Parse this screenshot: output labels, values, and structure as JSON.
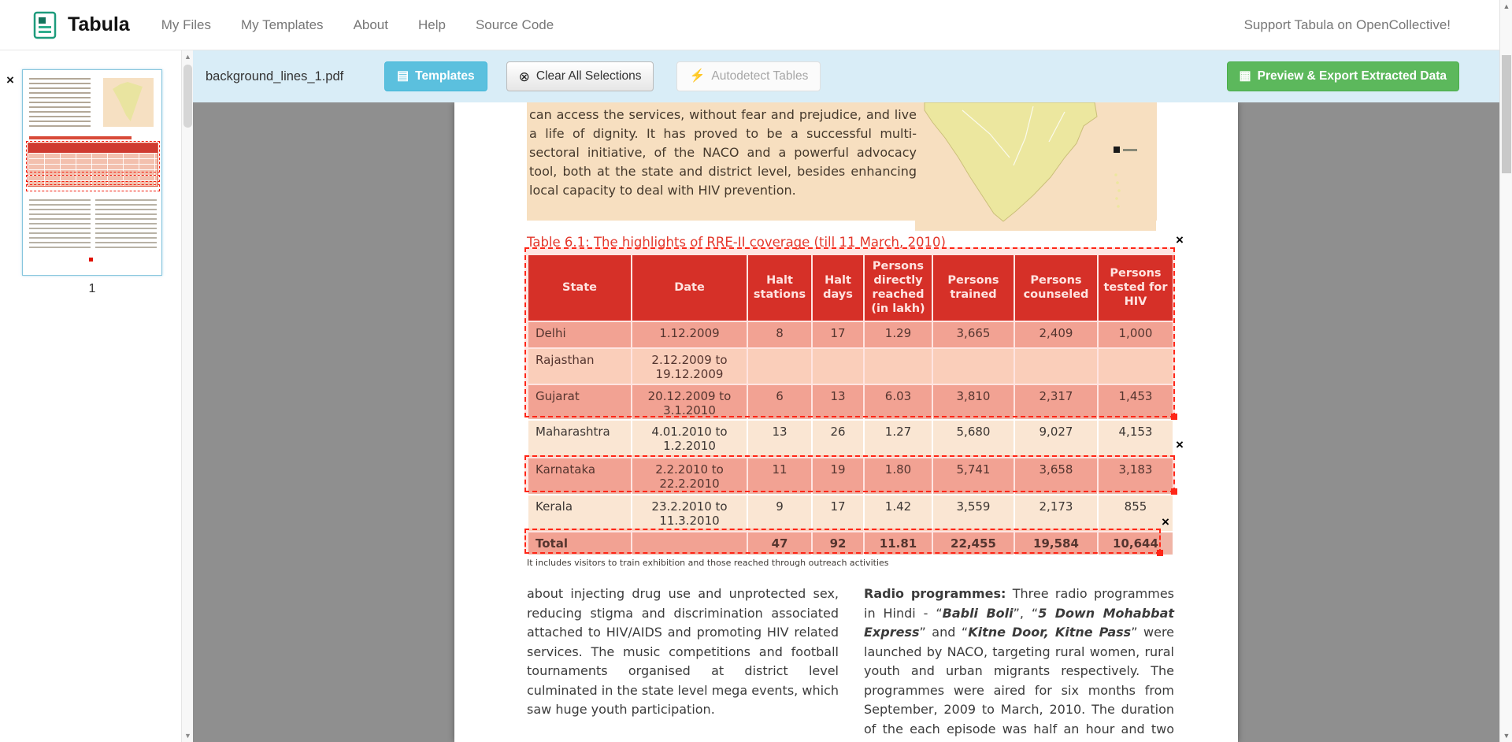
{
  "navbar": {
    "brand": "Tabula",
    "items": [
      {
        "label": "My Files"
      },
      {
        "label": "My Templates"
      },
      {
        "label": "About"
      },
      {
        "label": "Help"
      },
      {
        "label": "Source Code"
      }
    ],
    "support_link": "Support Tabula on OpenCollective!"
  },
  "toolbar": {
    "filename": "background_lines_1.pdf",
    "templates_button": "Templates",
    "clear_selections_button": "Clear All Selections",
    "autodetect_button": "Autodetect Tables",
    "export_button": "Preview & Export Extracted Data"
  },
  "sidebar": {
    "page_number": "1"
  },
  "icons": {
    "templates": "▤",
    "clear": "⊗",
    "autodetect": "⚡",
    "export": "▦",
    "close": "×",
    "scroll_up": "▲",
    "scroll_down": "▼"
  },
  "colors": {
    "toolbar_bg": "#d9edf7",
    "btn_info": "#5bc0de",
    "btn_info_border": "#46b8da",
    "btn_success": "#5cb85c",
    "btn_success_border": "#4cae4c",
    "selection_red": "#ff2617",
    "table_header_red": "#d0312b",
    "row_pink": "#f0b4a6",
    "row_cream": "#fae6d3",
    "page_peach": "#f7dfc0",
    "title_red": "#e2372b",
    "doc_gray": "#8f8f8f",
    "map_khaki": "#ece79f"
  },
  "pdf": {
    "intro_text": "can access the services, without fear and prejudice, and live a life of dignity. It has proved to be a successful multi-sectoral initiative, of the NACO and a powerful advocacy tool, both at the state and district level, besides enhancing local capacity to deal with HIV prevention.",
    "table_title": "Table 6.1: The highlights of RRE-II coverage (till 11 March, 2010)",
    "footnote": "It includes visitors to train exhibition and those reached through outreach activities",
    "left_column_text": "about injecting drug use and unprotected sex, reducing stigma and discrimination associated attached to HIV/AIDS and promoting HIV related services. The music competitions and football tournaments organised at district level culminated in the state level mega events, which saw huge youth participation.",
    "right_column": {
      "segments": [
        {
          "text": "Radio programmes:",
          "bold": true
        },
        {
          "text": " Three radio programmes in Hindi - “"
        },
        {
          "text": "Babli Boli",
          "italic": true
        },
        {
          "text": "”, “"
        },
        {
          "text": "5 Down Mohabbat Express",
          "italic": true
        },
        {
          "text": "” and “"
        },
        {
          "text": "Kitne Door, Kitne Pass",
          "italic": true
        },
        {
          "text": "” were launched by NACO, targeting rural women, rural youth and urban migrants respectively. The programmes were aired for six months from September, 2009 to March, 2010. The duration of the each episode was half an hour and two episodes"
        }
      ]
    }
  },
  "chart_data": {
    "type": "table",
    "title": "Table 6.1: The highlights of RRE-II coverage (till 11 March, 2010)",
    "columns": [
      "State",
      "Date",
      "Halt stations",
      "Halt days",
      "Persons directly reached (in lakh)",
      "Persons trained",
      "Persons counseled",
      "Persons tested for HIV"
    ],
    "rows": [
      [
        "Delhi",
        "1.12.2009",
        "8",
        "17",
        "1.29",
        "3,665",
        "2,409",
        "1,000"
      ],
      [
        "Rajasthan",
        "2.12.2009 to 19.12.2009",
        "",
        "",
        "",
        "",
        "",
        ""
      ],
      [
        "Gujarat",
        "20.12.2009 to 3.1.2010",
        "6",
        "13",
        "6.03",
        "3,810",
        "2,317",
        "1,453"
      ],
      [
        "Maharashtra",
        "4.01.2010 to 1.2.2010",
        "13",
        "26",
        "1.27",
        "5,680",
        "9,027",
        "4,153"
      ],
      [
        "Karnataka",
        "2.2.2010 to 22.2.2010",
        "11",
        "19",
        "1.80",
        "5,741",
        "3,658",
        "3,183"
      ],
      [
        "Kerala",
        "23.2.2010 to 11.3.2010",
        "9",
        "17",
        "1.42",
        "3,559",
        "2,173",
        "855"
      ],
      [
        "Total",
        "",
        "47",
        "92",
        "11.81",
        "22,455",
        "19,584",
        "10,644"
      ]
    ]
  }
}
